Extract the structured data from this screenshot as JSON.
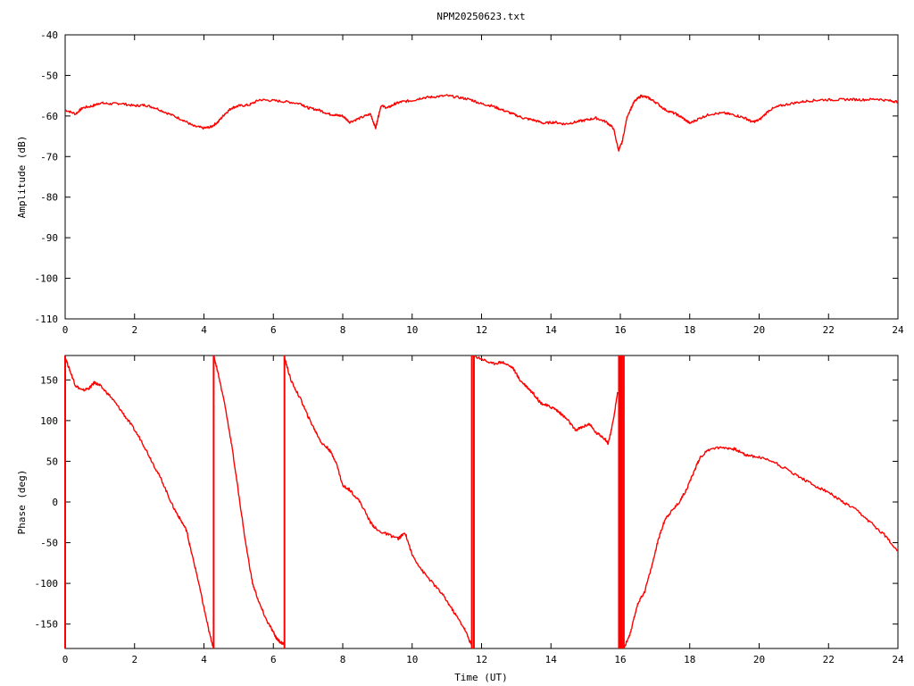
{
  "chart_data": [
    {
      "type": "line",
      "title": "NPM20250623.txt",
      "xlabel": "",
      "ylabel": "Amplitude (dB)",
      "xlim": [
        0,
        24
      ],
      "ylim": [
        -110,
        -40
      ],
      "xticks": [
        "0",
        "2",
        "4",
        "6",
        "8",
        "10",
        "12",
        "14",
        "16",
        "18",
        "20",
        "22",
        "24"
      ],
      "yticks": [
        "-40",
        "-50",
        "-60",
        "-70",
        "-80",
        "-90",
        "-100",
        "-110"
      ],
      "ytick_values": [
        -40,
        -50,
        -60,
        -70,
        -80,
        -90,
        -100,
        -110
      ],
      "grid": false,
      "color": "#ff0000",
      "series": [
        {
          "x": [
            0,
            0.3,
            0.5,
            0.8,
            1.0,
            1.3,
            1.6,
            2.0,
            2.3,
            2.6,
            3.0,
            3.4,
            3.7,
            4.0,
            4.2,
            4.4,
            4.6,
            4.8,
            5.0,
            5.3,
            5.6,
            6.0,
            6.4,
            6.8,
            7.0,
            7.3,
            7.6,
            7.8,
            8.0,
            8.2,
            8.5,
            8.8,
            8.95,
            9.0,
            9.1,
            9.3,
            9.5,
            9.7,
            10.0,
            10.3,
            10.6,
            11.0,
            11.4,
            11.7,
            12.0,
            12.3,
            12.6,
            12.9,
            13.2,
            13.5,
            13.8,
            14.1,
            14.4,
            14.7,
            15.0,
            15.3,
            15.6,
            15.8,
            15.95,
            16.05,
            16.2,
            16.4,
            16.6,
            16.8,
            17.0,
            17.3,
            17.6,
            17.8,
            18.0,
            18.3,
            18.6,
            19.0,
            19.3,
            19.6,
            19.8,
            20.0,
            20.3,
            20.6,
            21.0,
            21.4,
            21.8,
            22.2,
            22.6,
            23.0,
            23.4,
            23.8,
            24.0
          ],
          "y": [
            -58.5,
            -59.5,
            -58.0,
            -57.5,
            -56.8,
            -57.0,
            -56.9,
            -57.5,
            -57.3,
            -58.0,
            -59.5,
            -61.0,
            -62.5,
            -63.0,
            -62.7,
            -61.5,
            -59.5,
            -58.0,
            -57.5,
            -57.3,
            -56.0,
            -56.2,
            -56.5,
            -57.0,
            -58.0,
            -58.5,
            -59.5,
            -59.8,
            -60.0,
            -61.5,
            -60.5,
            -59.5,
            -63.0,
            -61.0,
            -57.5,
            -58.0,
            -57.0,
            -56.5,
            -56.2,
            -55.5,
            -55.3,
            -55.0,
            -55.5,
            -56.0,
            -57.0,
            -57.5,
            -58.5,
            -59.5,
            -60.5,
            -61.0,
            -61.8,
            -61.5,
            -62.0,
            -61.5,
            -61.0,
            -60.5,
            -61.5,
            -63.0,
            -68.5,
            -66.5,
            -60.0,
            -56.5,
            -55.0,
            -55.5,
            -56.5,
            -58.5,
            -59.5,
            -60.5,
            -61.8,
            -60.5,
            -59.5,
            -59.3,
            -59.8,
            -60.5,
            -61.5,
            -61.0,
            -58.5,
            -57.5,
            -56.8,
            -56.3,
            -56.0,
            -56.0,
            -55.9,
            -56.0,
            -55.8,
            -56.3,
            -56.5
          ]
        }
      ]
    },
    {
      "type": "line",
      "title": "",
      "xlabel": "Time (UT)",
      "ylabel": "Phase (deg)",
      "xlim": [
        0,
        24
      ],
      "ylim": [
        -180,
        180
      ],
      "xticks": [
        "0",
        "2",
        "4",
        "6",
        "8",
        "10",
        "12",
        "14",
        "16",
        "18",
        "20",
        "22",
        "24"
      ],
      "yticks": [
        "150",
        "100",
        "50",
        "0",
        "-50",
        "-100",
        "-150"
      ],
      "ytick_values": [
        150,
        100,
        50,
        0,
        -50,
        -100,
        -150
      ],
      "grid": false,
      "color": "#ff0000",
      "series": [
        {
          "segments": [
            {
              "x": [
                0,
                0.15,
                0.3,
                0.5,
                0.7,
                0.85,
                1.0,
                1.3,
                1.6,
                1.9,
                2.2,
                2.5,
                2.8,
                3.1,
                3.3,
                3.5,
                3.6,
                3.8,
                4.0,
                4.15,
                4.28
              ],
              "y": [
                178,
                160,
                143,
                137,
                140,
                147,
                143,
                130,
                113,
                95,
                75,
                50,
                25,
                -5,
                -20,
                -35,
                -55,
                -90,
                -130,
                -160,
                -180
              ]
            },
            {
              "x": [
                4.28,
                4.4,
                4.6,
                4.8,
                5.0,
                5.2,
                5.4,
                5.6,
                5.8,
                6.0,
                6.1,
                6.2,
                6.32
              ],
              "y": [
                180,
                160,
                120,
                70,
                10,
                -50,
                -100,
                -125,
                -145,
                -160,
                -168,
                -172,
                -175
              ]
            },
            {
              "x": [
                6.32,
                6.5,
                6.8,
                7.0,
                7.2,
                7.4,
                7.6,
                7.8,
                8.0,
                8.2,
                8.5,
                8.8,
                9.0,
                9.3,
                9.6,
                9.8,
                10.0,
                10.3,
                10.6,
                10.9,
                11.2,
                11.5,
                11.7
              ],
              "y": [
                178,
                150,
                125,
                105,
                88,
                72,
                65,
                50,
                20,
                15,
                0,
                -25,
                -35,
                -40,
                -45,
                -38,
                -65,
                -85,
                -100,
                -115,
                -135,
                -155,
                -175
              ]
            },
            {
              "x": [
                11.75,
                12.0,
                12.3,
                12.6,
                12.9,
                13.1,
                13.3,
                13.5,
                13.7,
                13.9,
                14.1,
                14.3,
                14.5,
                14.7,
                14.9,
                15.1,
                15.3,
                15.5,
                15.65,
                15.8,
                15.92
              ],
              "y": [
                180,
                176,
                170,
                172,
                165,
                150,
                142,
                133,
                122,
                118,
                115,
                108,
                100,
                88,
                92,
                96,
                85,
                80,
                72,
                100,
                135
              ]
            },
            {
              "x": [
                16.1,
                16.3,
                16.5,
                16.7,
                16.9,
                17.1,
                17.3,
                17.5,
                17.7,
                17.9,
                18.1,
                18.3,
                18.6,
                19.0,
                19.3,
                19.6,
                20.0,
                20.4,
                20.8,
                21.2,
                21.6,
                22.0,
                22.4,
                22.8,
                23.2,
                23.6,
                24.0
              ],
              "y": [
                -180,
                -160,
                -125,
                -110,
                -80,
                -45,
                -20,
                -10,
                0,
                15,
                35,
                55,
                66,
                67,
                65,
                58,
                55,
                50,
                40,
                30,
                20,
                12,
                0,
                -10,
                -25,
                -40,
                -60
              ]
            }
          ],
          "wrap_x": [
            0,
            4.28,
            6.32,
            11.72,
            11.78,
            15.96,
            16.0,
            16.05,
            16.1
          ]
        }
      ]
    }
  ]
}
